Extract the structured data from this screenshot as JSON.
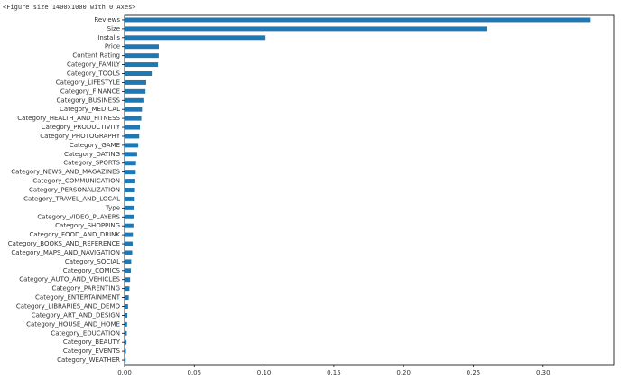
{
  "output_text": "<Figure size 1400x1000 with 0 Axes>",
  "chart_data": {
    "type": "barh",
    "color": "#1f77b4",
    "categories": [
      "Reviews",
      "Size",
      "Installs",
      "Price",
      "Content Rating",
      "Category_FAMILY",
      "Category_TOOLS",
      "Category_LIFESTYLE",
      "Category_FINANCE",
      "Category_BUSINESS",
      "Category_MEDICAL",
      "Category_HEALTH_AND_FITNESS",
      "Category_PRODUCTIVITY",
      "Category_PHOTOGRAPHY",
      "Category_GAME",
      "Category_DATING",
      "Category_SPORTS",
      "Category_NEWS_AND_MAGAZINES",
      "Category_COMMUNICATION",
      "Category_PERSONALIZATION",
      "Category_TRAVEL_AND_LOCAL",
      "Type",
      "Category_VIDEO_PLAYERS",
      "Category_SHOPPING",
      "Category_FOOD_AND_DRINK",
      "Category_BOOKS_AND_REFERENCE",
      "Category_MAPS_AND_NAVIGATION",
      "Category_SOCIAL",
      "Category_COMICS",
      "Category_AUTO_AND_VEHICLES",
      "Category_PARENTING",
      "Category_ENTERTAINMENT",
      "Category_LIBRARIES_AND_DEMO",
      "Category_ART_AND_DESIGN",
      "Category_HOUSE_AND_HOME",
      "Category_EDUCATION",
      "Category_BEAUTY",
      "Category_EVENTS",
      "Category_WEATHER"
    ],
    "values": [
      0.334,
      0.26,
      0.101,
      0.0246,
      0.0245,
      0.024,
      0.0195,
      0.0155,
      0.015,
      0.0135,
      0.0125,
      0.012,
      0.011,
      0.0105,
      0.0098,
      0.009,
      0.0082,
      0.008,
      0.0077,
      0.0075,
      0.0073,
      0.007,
      0.0068,
      0.0064,
      0.006,
      0.0058,
      0.0055,
      0.0048,
      0.0045,
      0.004,
      0.0035,
      0.003,
      0.0025,
      0.002,
      0.0018,
      0.0016,
      0.0014,
      0.001,
      0.0008
    ],
    "xlim": [
      0,
      0.3506
    ],
    "xticks": [
      {
        "value": 0,
        "label": "0.00"
      },
      {
        "value": 0.05,
        "label": "0.05"
      },
      {
        "value": 0.1,
        "label": "0.10"
      },
      {
        "value": 0.15,
        "label": "0.15"
      },
      {
        "value": 0.2,
        "label": "0.20"
      },
      {
        "value": 0.25,
        "label": "0.25"
      },
      {
        "value": 0.3,
        "label": "0.30"
      }
    ]
  }
}
